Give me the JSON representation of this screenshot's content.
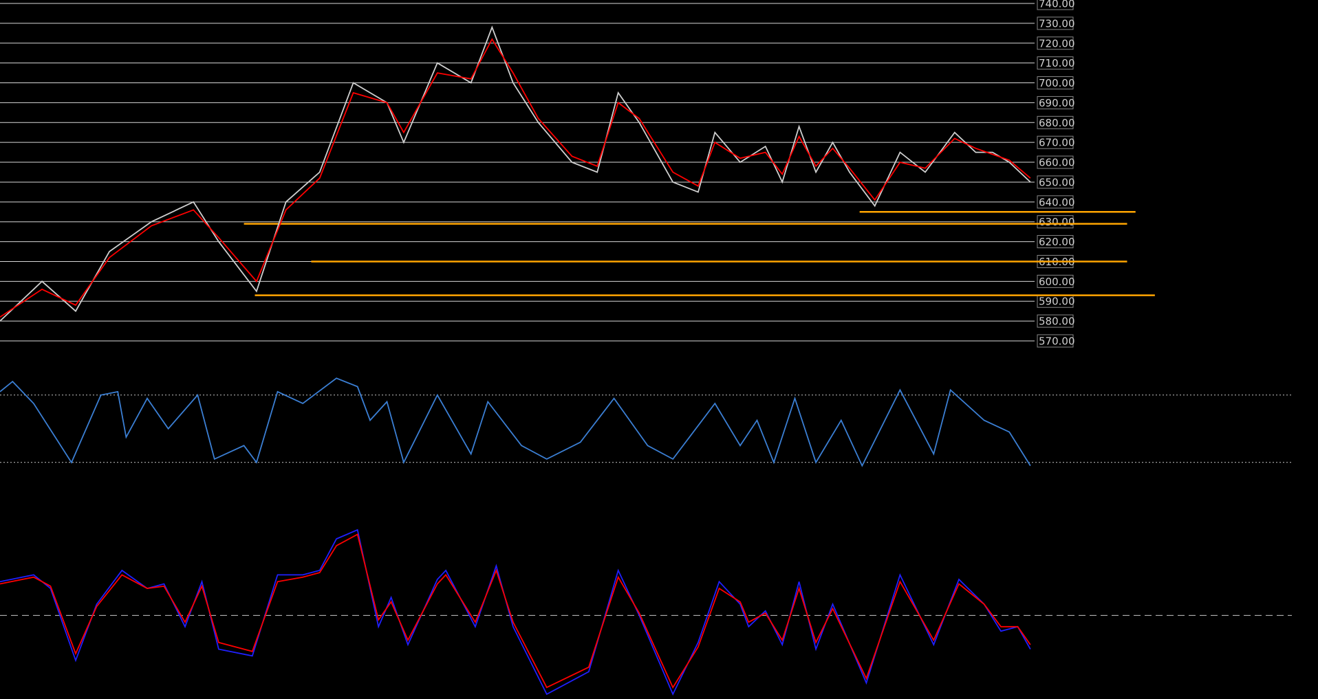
{
  "chart_data": [
    {
      "type": "line",
      "grid": true,
      "xlim": [
        0,
        1230
      ],
      "ylim": [
        570,
        740
      ],
      "yticks": [
        {
          "value": 740,
          "label": "740.00"
        },
        {
          "value": 730,
          "label": "730.00"
        },
        {
          "value": 720,
          "label": "720.00"
        },
        {
          "value": 710,
          "label": "710.00"
        },
        {
          "value": 700,
          "label": "700.00"
        },
        {
          "value": 690,
          "label": "690.00"
        },
        {
          "value": 680,
          "label": "680.00"
        },
        {
          "value": 670,
          "label": "670.00"
        },
        {
          "value": 660,
          "label": "660.00"
        },
        {
          "value": 650,
          "label": "650.00"
        },
        {
          "value": 640,
          "label": "640.00"
        },
        {
          "value": 630,
          "label": "630.00"
        },
        {
          "value": 620,
          "label": "620.00"
        },
        {
          "value": 610,
          "label": "610.00"
        },
        {
          "value": 600,
          "label": "600.00"
        },
        {
          "value": 590,
          "label": "590.00"
        },
        {
          "value": 580,
          "label": "580.00"
        },
        {
          "value": 570,
          "label": "570.00"
        }
      ],
      "x": [
        0,
        50,
        90,
        130,
        180,
        230,
        260,
        305,
        340,
        380,
        420,
        460,
        480,
        520,
        560,
        585,
        610,
        640,
        680,
        710,
        735,
        760,
        800,
        830,
        850,
        880,
        910,
        930,
        950,
        970,
        990,
        1010,
        1040,
        1070,
        1100,
        1135,
        1160,
        1180,
        1200,
        1225
      ],
      "series": [
        {
          "color": "#cfcfcf",
          "values": [
            580,
            600,
            585,
            615,
            630,
            640,
            620,
            595,
            640,
            655,
            700,
            690,
            670,
            710,
            700,
            728,
            700,
            680,
            660,
            655,
            695,
            680,
            650,
            645,
            675,
            660,
            668,
            650,
            678,
            655,
            670,
            655,
            638,
            665,
            655,
            675,
            665,
            665,
            660,
            650
          ]
        },
        {
          "color": "#ff0000",
          "values": [
            582,
            596,
            588,
            612,
            628,
            636,
            622,
            600,
            636,
            652,
            695,
            690,
            675,
            705,
            702,
            722,
            705,
            682,
            663,
            658,
            690,
            682,
            655,
            648,
            670,
            662,
            665,
            654,
            673,
            658,
            667,
            657,
            641,
            660,
            657,
            672,
            667,
            664,
            661,
            652
          ]
        }
      ],
      "hlines": [
        {
          "value": 635,
          "x": [
            1022,
            1350
          ]
        },
        {
          "value": 629,
          "x": [
            290,
            1340
          ]
        },
        {
          "value": 610,
          "x": [
            370,
            1340
          ]
        },
        {
          "value": 593,
          "x": [
            303,
            1373
          ]
        }
      ],
      "hline_color": "#ffa500"
    },
    {
      "type": "line",
      "xlim": [
        0,
        1230
      ],
      "ylim": [
        25,
        85
      ],
      "levels": [
        70,
        30
      ],
      "level_style": "dotted",
      "x": [
        0,
        15,
        40,
        85,
        120,
        140,
        150,
        175,
        200,
        235,
        255,
        290,
        305,
        330,
        360,
        400,
        425,
        440,
        460,
        480,
        520,
        560,
        580,
        620,
        650,
        690,
        730,
        770,
        800,
        850,
        880,
        900,
        920,
        945,
        970,
        1000,
        1025,
        1070,
        1110,
        1130,
        1170,
        1200,
        1225
      ],
      "series": [
        {
          "color": "#3b7fd4",
          "values": [
            72,
            78,
            65,
            30,
            70,
            72,
            45,
            68,
            50,
            70,
            32,
            40,
            30,
            72,
            65,
            80,
            75,
            55,
            66,
            30,
            70,
            35,
            66,
            40,
            32,
            42,
            68,
            40,
            32,
            65,
            40,
            55,
            30,
            68,
            30,
            55,
            28,
            73,
            35,
            73,
            55,
            48,
            28
          ]
        }
      ]
    },
    {
      "type": "line",
      "xlim": [
        0,
        1230
      ],
      "ylim": [
        15,
        95
      ],
      "levels": [
        50
      ],
      "level_style": "dashed",
      "x": [
        0,
        40,
        60,
        90,
        115,
        145,
        175,
        195,
        220,
        240,
        260,
        300,
        330,
        360,
        380,
        400,
        425,
        450,
        465,
        485,
        520,
        530,
        565,
        590,
        610,
        650,
        700,
        735,
        760,
        800,
        830,
        855,
        880,
        890,
        910,
        930,
        950,
        970,
        990,
        1030,
        1070,
        1110,
        1140,
        1170,
        1190,
        1210,
        1225
      ],
      "series": [
        {
          "color": "#2020ff",
          "values": [
            65,
            68,
            62,
            30,
            55,
            70,
            62,
            64,
            45,
            65,
            35,
            32,
            68,
            68,
            70,
            84,
            88,
            45,
            58,
            37,
            66,
            70,
            45,
            72,
            45,
            15,
            25,
            70,
            50,
            15,
            38,
            65,
            55,
            45,
            52,
            37,
            65,
            35,
            55,
            20,
            68,
            37,
            66,
            55,
            43,
            45,
            35
          ]
        },
        {
          "color": "#ff0000",
          "values": [
            64,
            67,
            63,
            33,
            54,
            68,
            62,
            63,
            47,
            63,
            38,
            34,
            65,
            67,
            69,
            81,
            86,
            48,
            56,
            39,
            64,
            68,
            47,
            70,
            47,
            18,
            27,
            67,
            51,
            18,
            36,
            62,
            56,
            47,
            51,
            39,
            62,
            38,
            53,
            22,
            65,
            39,
            64,
            55,
            45,
            45,
            37
          ]
        }
      ]
    }
  ]
}
